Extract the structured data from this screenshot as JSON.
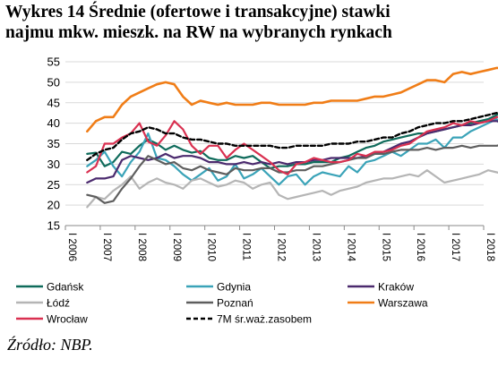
{
  "chart_data": {
    "type": "line",
    "title_lines": [
      "Wykres 14 Średnie (ofertowe i transakcyjne) stawki",
      "najmu mkw. mieszk. na RW na wybranych rynkach"
    ],
    "xlabel": "",
    "ylabel": "",
    "ylim": [
      15,
      55
    ],
    "y_ticks": [
      15,
      20,
      25,
      30,
      35,
      40,
      45,
      50,
      55
    ],
    "x_tick_labels": [
      "I 2006",
      "I 2007",
      "I 2008",
      "I 2009",
      "I 2010",
      "I 2011",
      "I 2012",
      "I 2013",
      "I 2014",
      "I 2015",
      "I 2016",
      "I 2017",
      "I 2018"
    ],
    "x_start": "2006Q3",
    "x_end": "2017Q4",
    "legend_position": "bottom",
    "grid": "horizontal",
    "series": [
      {
        "name": "Gdańsk",
        "color": "#0f6b5b",
        "dash": "",
        "values": [
          32.5,
          32.8,
          29.5,
          30.5,
          33.0,
          32.5,
          34.5,
          36.0,
          35.0,
          33.5,
          34.5,
          33.5,
          32.8,
          33.2,
          31.5,
          31.0,
          31.0,
          32.0,
          31.5,
          32.0,
          30.5,
          29.0,
          29.5,
          29.5,
          30.0,
          30.0,
          30.5,
          30.5,
          30.5,
          31.5,
          32.0,
          33.0,
          34.0,
          34.5,
          35.5,
          36.0,
          36.5,
          37.0,
          37.5,
          37.5,
          38.0,
          38.5,
          39.0,
          39.5,
          40.0,
          40.5,
          41.0,
          42.0,
          43.5,
          43.0
        ]
      },
      {
        "name": "Gdynia",
        "color": "#3aa3b8",
        "dash": "",
        "values": [
          29.5,
          31.0,
          33.0,
          29.5,
          27.0,
          30.5,
          33.0,
          37.5,
          31.5,
          31.0,
          29.5,
          27.5,
          26.0,
          27.5,
          29.0,
          26.0,
          27.0,
          30.0,
          26.5,
          27.5,
          29.0,
          27.0,
          25.0,
          27.0,
          27.5,
          25.0,
          27.0,
          28.0,
          27.5,
          27.0,
          29.5,
          28.0,
          30.5,
          31.0,
          32.0,
          33.0,
          32.0,
          33.5,
          35.0,
          35.0,
          36.0,
          34.0,
          36.5,
          36.5,
          38.0,
          39.0,
          40.0,
          41.0,
          37.5,
          37.5
        ]
      },
      {
        "name": "Kraków",
        "color": "#4b2a6e",
        "dash": "",
        "values": [
          25.5,
          26.5,
          26.5,
          27.0,
          31.0,
          32.0,
          31.5,
          31.0,
          31.5,
          32.5,
          31.5,
          32.0,
          32.0,
          31.5,
          30.5,
          30.5,
          30.0,
          30.0,
          30.5,
          30.0,
          30.5,
          30.0,
          30.5,
          30.0,
          30.5,
          30.5,
          31.0,
          31.0,
          31.5,
          31.5,
          31.5,
          31.5,
          32.0,
          32.5,
          33.0,
          34.0,
          35.0,
          35.5,
          36.5,
          37.5,
          38.0,
          38.5,
          39.0,
          39.5,
          39.5,
          40.0,
          40.5,
          40.5,
          40.0,
          42.0
        ]
      },
      {
        "name": "Łódź",
        "color": "#b5b5b5",
        "dash": "",
        "values": [
          19.5,
          22.0,
          21.5,
          23.5,
          25.0,
          27.0,
          24.0,
          25.5,
          26.5,
          25.5,
          25.0,
          24.0,
          26.0,
          26.5,
          25.5,
          24.5,
          25.0,
          26.0,
          25.5,
          24.0,
          25.0,
          25.5,
          22.5,
          21.5,
          22.0,
          22.5,
          23.0,
          23.5,
          22.5,
          23.5,
          24.0,
          24.5,
          25.5,
          26.0,
          26.5,
          26.5,
          27.0,
          27.5,
          27.0,
          28.5,
          27.0,
          25.5,
          26.0,
          26.5,
          27.0,
          27.5,
          28.5,
          28.0,
          27.5,
          28.0
        ]
      },
      {
        "name": "Poznań",
        "color": "#5e5e5e",
        "dash": "",
        "values": [
          22.5,
          22.0,
          20.5,
          21.0,
          24.0,
          26.5,
          29.5,
          32.0,
          31.0,
          30.0,
          30.5,
          29.0,
          28.5,
          29.5,
          28.5,
          28.0,
          27.5,
          29.0,
          28.5,
          28.5,
          29.0,
          29.0,
          28.0,
          28.0,
          28.5,
          28.5,
          29.5,
          29.5,
          30.0,
          30.5,
          31.0,
          31.5,
          31.5,
          32.5,
          32.5,
          33.0,
          33.5,
          33.5,
          33.5,
          34.0,
          33.5,
          34.0,
          34.0,
          34.5,
          34.0,
          34.5,
          34.5,
          34.5,
          35.0,
          36.0
        ]
      },
      {
        "name": "Warszawa",
        "color": "#f07d17",
        "dash": "",
        "values": [
          38.0,
          40.5,
          41.5,
          41.5,
          44.5,
          46.5,
          47.5,
          48.5,
          49.5,
          50.0,
          49.5,
          46.5,
          44.5,
          45.5,
          45.0,
          44.5,
          45.0,
          44.5,
          44.5,
          44.5,
          45.0,
          45.0,
          44.5,
          44.5,
          44.5,
          44.5,
          45.0,
          45.0,
          45.5,
          45.5,
          45.5,
          45.5,
          46.0,
          46.5,
          46.5,
          47.0,
          47.5,
          48.5,
          49.5,
          50.5,
          50.5,
          50.0,
          52.0,
          52.5,
          52.0,
          52.5,
          53.0,
          53.5,
          53.5,
          53.0
        ]
      },
      {
        "name": "Wrocław",
        "color": "#d93050",
        "dash": "",
        "values": [
          28.0,
          29.5,
          35.0,
          35.0,
          36.5,
          37.5,
          40.0,
          35.5,
          34.5,
          37.0,
          40.5,
          38.5,
          34.5,
          32.5,
          34.5,
          34.5,
          31.5,
          33.5,
          35.0,
          33.5,
          32.0,
          30.5,
          28.5,
          27.5,
          30.0,
          30.5,
          31.5,
          31.0,
          30.5,
          30.5,
          31.0,
          32.5,
          32.0,
          33.0,
          33.0,
          33.5,
          34.5,
          35.0,
          36.5,
          38.0,
          38.5,
          39.0,
          40.0,
          39.5,
          40.5,
          40.0,
          40.5,
          41.5,
          41.5,
          40.5
        ]
      },
      {
        "name": "7M śr.waż.zasobem",
        "color": "#000000",
        "dash": "5,3",
        "values": [
          31.0,
          32.5,
          33.5,
          34.0,
          36.0,
          37.5,
          38.0,
          39.0,
          38.5,
          37.5,
          37.5,
          36.5,
          36.0,
          36.0,
          35.5,
          35.0,
          35.0,
          34.5,
          34.5,
          34.5,
          34.5,
          34.5,
          34.0,
          34.0,
          34.5,
          34.5,
          34.5,
          34.5,
          35.0,
          35.0,
          35.0,
          35.5,
          35.5,
          36.0,
          36.5,
          36.5,
          37.5,
          38.0,
          39.0,
          39.5,
          40.0,
          40.0,
          40.5,
          40.5,
          41.0,
          41.5,
          42.0,
          42.5,
          42.5,
          42.5
        ]
      }
    ]
  },
  "source_text": "Źródło: NBP."
}
